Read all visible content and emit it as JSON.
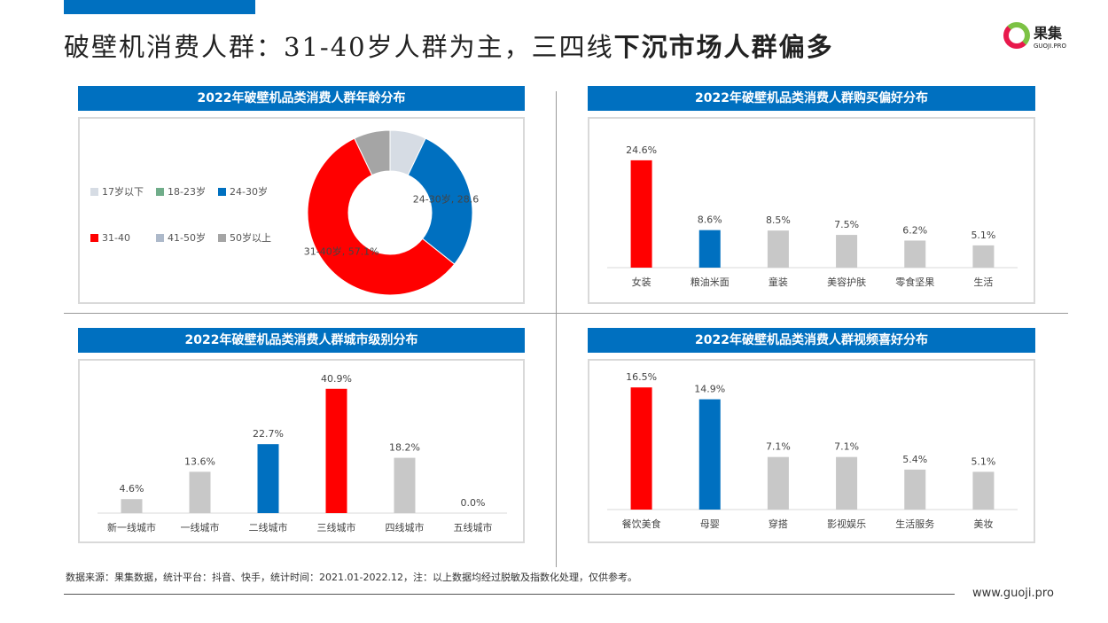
{
  "header": {
    "title_plain": "破壁机消费人群：31-40岁人群为主，三四线",
    "title_bold": "下沉市场人群偏多",
    "logo_cn": "果集",
    "logo_en": "GUOJI.PRO"
  },
  "chart_data": [
    {
      "type": "pie",
      "title": "2022年破壁机品类消费人群年龄分布",
      "categories": [
        "17岁以下",
        "18-23岁",
        "24-30岁",
        "31-40",
        "41-50岁",
        "50岁以上"
      ],
      "values": [
        7.1,
        0,
        28.6,
        57.1,
        0,
        7.1
      ],
      "colors": [
        "#d6dce4",
        "#70ad8a",
        "#0070c0",
        "#ff0000",
        "#adb9ca",
        "#a5a5a5"
      ],
      "data_labels": [
        "",
        "",
        "24-30岁, 28.6%",
        "31-40岁, 57.1%",
        "",
        ""
      ],
      "legend": "left"
    },
    {
      "type": "bar",
      "title": "2022年破壁机品类消费人群购买偏好分布",
      "categories": [
        "女装",
        "粮油米面",
        "童装",
        "美容护肤",
        "零食坚果",
        "生活"
      ],
      "values": [
        24.6,
        8.6,
        8.5,
        7.5,
        6.2,
        5.1
      ],
      "labels": [
        "24.6%",
        "8.6%",
        "8.5%",
        "7.5%",
        "6.2%",
        "5.1%"
      ],
      "colors": [
        "#ff0000",
        "#0070c0",
        "#c8c8c8",
        "#c8c8c8",
        "#c8c8c8",
        "#c8c8c8"
      ],
      "ylim": [
        0,
        26
      ]
    },
    {
      "type": "bar",
      "title": "2022年破壁机品类消费人群城市级别分布",
      "categories": [
        "新一线城市",
        "一线城市",
        "二线城市",
        "三线城市",
        "四线城市",
        "五线城市"
      ],
      "values": [
        4.6,
        13.6,
        22.7,
        40.9,
        18.2,
        0.0
      ],
      "labels": [
        "4.6%",
        "13.6%",
        "22.7%",
        "40.9%",
        "18.2%",
        "0.0%"
      ],
      "colors": [
        "#c8c8c8",
        "#c8c8c8",
        "#0070c0",
        "#ff0000",
        "#c8c8c8",
        "#c8c8c8"
      ],
      "ylim": [
        0,
        42
      ]
    },
    {
      "type": "bar",
      "title": "2022年破壁机品类消费人群视频喜好分布",
      "categories": [
        "餐饮美食",
        "母婴",
        "穿搭",
        "影视娱乐",
        "生活服务",
        "美妆"
      ],
      "values": [
        16.5,
        14.9,
        7.1,
        7.1,
        5.4,
        5.1
      ],
      "labels": [
        "16.5%",
        "14.9%",
        "7.1%",
        "7.1%",
        "5.4%",
        "5.1%"
      ],
      "colors": [
        "#ff0000",
        "#0070c0",
        "#c8c8c8",
        "#c8c8c8",
        "#c8c8c8",
        "#c8c8c8"
      ],
      "ylim": [
        0,
        17
      ]
    }
  ],
  "footer": {
    "note": "数据来源：果集数据，统计平台：抖音、快手，统计时间：2021.01-2022.12，注：以上数据均经过脱敏及指数化处理，仅供参考。",
    "url": "www.guoji.pro"
  }
}
